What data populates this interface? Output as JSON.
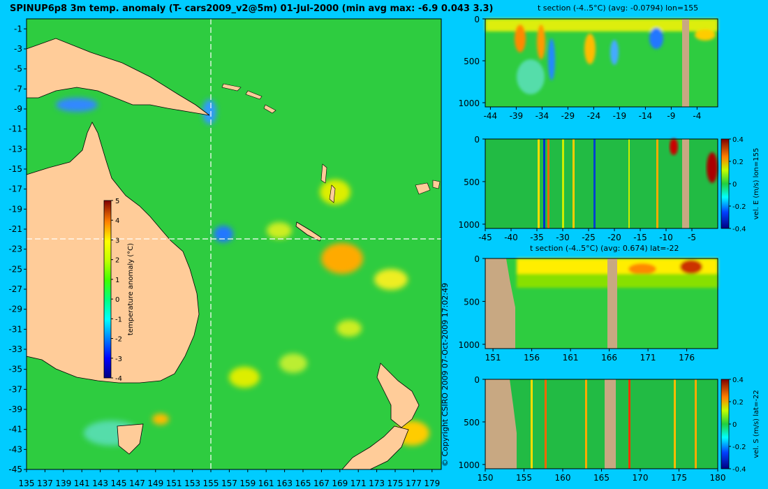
{
  "header": {
    "title": "SPINUP6p8 3m temp. anomaly (T- cars2009_v2@5m) 01-Jul-2000 (min avg max: -6.9 0.043 3.3)",
    "copyright": "© Copyright CSIRO 2009   07-Oct-2009 17:02:49"
  },
  "colors": {
    "background": "#00ccff",
    "land": "#ffcc99",
    "section_land": "#c8a882",
    "crosshair": "#ffffff"
  },
  "chart_data": [
    {
      "type": "heatmap",
      "name": "map",
      "x_ticks": [
        135,
        137,
        139,
        141,
        143,
        145,
        147,
        149,
        151,
        153,
        155,
        157,
        159,
        161,
        163,
        165,
        167,
        169,
        171,
        173,
        175,
        177,
        179
      ],
      "y_ticks": [
        -1,
        -3,
        -5,
        -7,
        -9,
        -11,
        -13,
        -15,
        -17,
        -19,
        -21,
        -23,
        -25,
        -27,
        -29,
        -31,
        -33,
        -35,
        -37,
        -39,
        -41,
        -43,
        -45
      ],
      "xlim": [
        135,
        180
      ],
      "ylim": [
        -45,
        0
      ],
      "crosshair": {
        "lon": 155,
        "lat": -22
      },
      "colorbar": {
        "label": "temperature anomaly (°C)",
        "ticks": [
          5,
          4,
          3,
          2,
          1,
          0,
          -1,
          -2,
          -3,
          -4
        ],
        "range": [
          -4,
          5
        ]
      }
    },
    {
      "type": "heatmap",
      "name": "section-1",
      "title": "t section (-4..5°C) (avg: -0.0794) lon=155",
      "x_ticks": [
        -44,
        -39,
        -34,
        -29,
        -24,
        -19,
        -14,
        -9,
        -4
      ],
      "xlim": [
        -45,
        0
      ],
      "y_ticks": [
        0,
        500,
        1000
      ],
      "ylim": [
        1050,
        0
      ]
    },
    {
      "type": "heatmap",
      "name": "section-2",
      "x_ticks": [
        -45,
        -40,
        -35,
        -30,
        -25,
        -20,
        -15,
        -10,
        -5
      ],
      "xlim": [
        -45,
        0
      ],
      "y_ticks": [
        0,
        500,
        1000
      ],
      "ylim": [
        1050,
        0
      ],
      "colorbar": {
        "label": "vel. E (m/s) lon=155",
        "ticks": [
          "0.4",
          "0.2",
          "0",
          "-0.2",
          "-0.4"
        ],
        "range": [
          -0.4,
          0.4
        ]
      }
    },
    {
      "type": "heatmap",
      "name": "section-3",
      "title": "t section (-4..5°C) (avg: 0.674) lat=-22",
      "x_ticks": [
        151,
        156,
        161,
        166,
        171,
        176
      ],
      "xlim": [
        150,
        180
      ],
      "y_ticks": [
        0,
        500,
        1000
      ],
      "ylim": [
        1050,
        0
      ]
    },
    {
      "type": "heatmap",
      "name": "section-4",
      "x_ticks": [
        150,
        155,
        160,
        165,
        170,
        175,
        180
      ],
      "xlim": [
        150,
        180
      ],
      "y_ticks": [
        0,
        500,
        1000
      ],
      "ylim": [
        1050,
        0
      ],
      "colorbar": {
        "label": "vel. S (m/s) lat=-22",
        "ticks": [
          "0.4",
          "0.2",
          "0",
          "-0.2",
          "-0.4"
        ],
        "range": [
          -0.4,
          0.4
        ]
      }
    }
  ]
}
